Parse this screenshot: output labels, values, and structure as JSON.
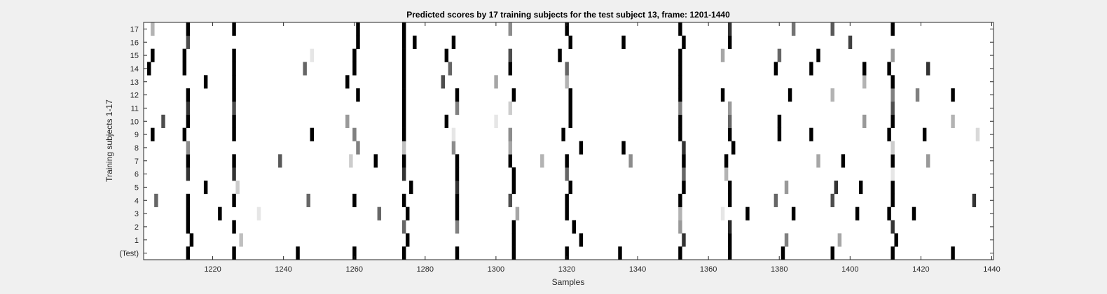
{
  "chart_data": {
    "type": "heatmap",
    "title": "Predicted scores by 17 training subjects for the test subject 13, frame: 1201-1440",
    "xlabel": "Samples",
    "ylabel": "Training subjects 1-17",
    "xlim": [
      1201,
      1440
    ],
    "x_ticks": [
      "1220",
      "1240",
      "1260",
      "1280",
      "1300",
      "1320",
      "1340",
      "1360",
      "1380",
      "1400",
      "1420",
      "1440"
    ],
    "y_tick_labels": [
      "(Test)",
      "1",
      "2",
      "3",
      "4",
      "5",
      "6",
      "7",
      "8",
      "9",
      "10",
      "11",
      "12",
      "13",
      "14",
      "15",
      "16",
      "17"
    ],
    "value_scale": "0 = white (no score), 1 = black (strong score)",
    "rows": [
      {
        "label": "(Test)",
        "marks": [
          [
            1213,
            1
          ],
          [
            1226,
            1
          ],
          [
            1244,
            1
          ],
          [
            1260,
            1
          ],
          [
            1274,
            1
          ],
          [
            1289,
            1
          ],
          [
            1305,
            1
          ],
          [
            1320,
            1
          ],
          [
            1335,
            1
          ],
          [
            1352,
            1
          ],
          [
            1366,
            1
          ],
          [
            1381,
            1
          ],
          [
            1395,
            1
          ],
          [
            1412,
            1
          ],
          [
            1429,
            1
          ]
        ]
      },
      {
        "label": "1",
        "marks": [
          [
            1214,
            1
          ],
          [
            1228,
            0.25
          ],
          [
            1275,
            1
          ],
          [
            1305,
            1
          ],
          [
            1324,
            1
          ],
          [
            1353,
            0.8
          ],
          [
            1366,
            1
          ],
          [
            1382,
            0.5
          ],
          [
            1397,
            0.35
          ],
          [
            1413,
            1
          ]
        ]
      },
      {
        "label": "2",
        "marks": [
          [
            1213,
            1
          ],
          [
            1226,
            1
          ],
          [
            1274,
            0.6
          ],
          [
            1289,
            0.5
          ],
          [
            1305,
            1
          ],
          [
            1322,
            1
          ],
          [
            1352,
            0.4
          ],
          [
            1366,
            0.85
          ],
          [
            1412,
            0.8
          ]
        ]
      },
      {
        "label": "3",
        "marks": [
          [
            1213,
            1
          ],
          [
            1222,
            1
          ],
          [
            1233,
            0.1
          ],
          [
            1267,
            0.6
          ],
          [
            1275,
            1
          ],
          [
            1289,
            1
          ],
          [
            1306,
            0.35
          ],
          [
            1320,
            1
          ],
          [
            1352,
            0.3
          ],
          [
            1364,
            0.1
          ],
          [
            1371,
            1
          ],
          [
            1384,
            1
          ],
          [
            1402,
            1
          ],
          [
            1411,
            1
          ],
          [
            1418,
            1
          ]
        ]
      },
      {
        "label": "4",
        "marks": [
          [
            1204,
            0.6
          ],
          [
            1213,
            1
          ],
          [
            1226,
            1
          ],
          [
            1247,
            0.6
          ],
          [
            1260,
            1
          ],
          [
            1274,
            1
          ],
          [
            1289,
            1
          ],
          [
            1304,
            0.7
          ],
          [
            1320,
            1
          ],
          [
            1352,
            1
          ],
          [
            1366,
            1
          ],
          [
            1379,
            0.6
          ],
          [
            1395,
            0.7
          ],
          [
            1412,
            1
          ],
          [
            1435,
            0.8
          ]
        ]
      },
      {
        "label": "5",
        "marks": [
          [
            1218,
            1
          ],
          [
            1227,
            0.2
          ],
          [
            1276,
            1
          ],
          [
            1289,
            0.8
          ],
          [
            1305,
            1
          ],
          [
            1321,
            1
          ],
          [
            1353,
            1
          ],
          [
            1366,
            1
          ],
          [
            1382,
            0.4
          ],
          [
            1396,
            0.8
          ],
          [
            1403,
            1
          ],
          [
            1412,
            1
          ]
        ]
      },
      {
        "label": "6",
        "marks": [
          [
            1213,
            0.8
          ],
          [
            1226,
            0.8
          ],
          [
            1274,
            0.8
          ],
          [
            1289,
            1
          ],
          [
            1305,
            1
          ],
          [
            1320,
            0.6
          ],
          [
            1353,
            0.6
          ],
          [
            1365,
            0.3
          ],
          [
            1412,
            0.1
          ]
        ]
      },
      {
        "label": "7",
        "marks": [
          [
            1213,
            1
          ],
          [
            1226,
            1
          ],
          [
            1239,
            0.65
          ],
          [
            1259,
            0.2
          ],
          [
            1266,
            1
          ],
          [
            1274,
            1
          ],
          [
            1289,
            1
          ],
          [
            1304,
            1
          ],
          [
            1313,
            0.3
          ],
          [
            1320,
            1
          ],
          [
            1338,
            0.45
          ],
          [
            1353,
            1
          ],
          [
            1365,
            1
          ],
          [
            1391,
            0.35
          ],
          [
            1398,
            1
          ],
          [
            1412,
            1
          ],
          [
            1422,
            0.4
          ]
        ]
      },
      {
        "label": "8",
        "marks": [
          [
            1213,
            0.45
          ],
          [
            1261,
            0.5
          ],
          [
            1274,
            0.25
          ],
          [
            1288,
            0.45
          ],
          [
            1304,
            0.35
          ],
          [
            1324,
            1
          ],
          [
            1336,
            1
          ],
          [
            1353,
            0.8
          ],
          [
            1367,
            1
          ],
          [
            1412,
            0.2
          ]
        ]
      },
      {
        "label": "9",
        "marks": [
          [
            1203,
            1
          ],
          [
            1212,
            1
          ],
          [
            1226,
            1
          ],
          [
            1248,
            1
          ],
          [
            1260,
            0.5
          ],
          [
            1274,
            1
          ],
          [
            1288,
            0.1
          ],
          [
            1304,
            0.45
          ],
          [
            1319,
            1
          ],
          [
            1352,
            1
          ],
          [
            1366,
            1
          ],
          [
            1380,
            1
          ],
          [
            1389,
            1
          ],
          [
            1411,
            1
          ],
          [
            1421,
            1
          ],
          [
            1436,
            0.15
          ]
        ]
      },
      {
        "label": "10",
        "marks": [
          [
            1206,
            0.7
          ],
          [
            1213,
            1
          ],
          [
            1226,
            1
          ],
          [
            1258,
            0.4
          ],
          [
            1274,
            1
          ],
          [
            1286,
            1
          ],
          [
            1300,
            0.1
          ],
          [
            1321,
            1
          ],
          [
            1352,
            1
          ],
          [
            1366,
            0.6
          ],
          [
            1380,
            1
          ],
          [
            1404,
            0.4
          ],
          [
            1412,
            1
          ],
          [
            1429,
            0.3
          ]
        ]
      },
      {
        "label": "11",
        "marks": [
          [
            1213,
            0.8
          ],
          [
            1226,
            0.7
          ],
          [
            1274,
            1
          ],
          [
            1289,
            0.5
          ],
          [
            1304,
            0.2
          ],
          [
            1321,
            1
          ],
          [
            1352,
            0.5
          ],
          [
            1366,
            0.4
          ],
          [
            1412,
            0.7
          ]
        ]
      },
      {
        "label": "12",
        "marks": [
          [
            1213,
            1
          ],
          [
            1226,
            1
          ],
          [
            1261,
            1
          ],
          [
            1274,
            1
          ],
          [
            1289,
            1
          ],
          [
            1305,
            1
          ],
          [
            1321,
            1
          ],
          [
            1352,
            1
          ],
          [
            1364,
            1
          ],
          [
            1383,
            1
          ],
          [
            1395,
            0.3
          ],
          [
            1412,
            0.5
          ],
          [
            1419,
            0.5
          ],
          [
            1429,
            1
          ]
        ]
      },
      {
        "label": "13",
        "marks": [
          [
            1218,
            1
          ],
          [
            1226,
            1
          ],
          [
            1258,
            1
          ],
          [
            1274,
            1
          ],
          [
            1285,
            0.7
          ],
          [
            1300,
            0.35
          ],
          [
            1320,
            0.3
          ],
          [
            1352,
            1
          ],
          [
            1404,
            0.3
          ],
          [
            1412,
            1
          ]
        ]
      },
      {
        "label": "14",
        "marks": [
          [
            1202,
            1
          ],
          [
            1212,
            1
          ],
          [
            1226,
            1
          ],
          [
            1246,
            0.6
          ],
          [
            1260,
            1
          ],
          [
            1274,
            1
          ],
          [
            1287,
            0.6
          ],
          [
            1304,
            1
          ],
          [
            1320,
            0.6
          ],
          [
            1352,
            1
          ],
          [
            1379,
            1
          ],
          [
            1389,
            1
          ],
          [
            1404,
            1
          ],
          [
            1411,
            1
          ],
          [
            1422,
            0.8
          ]
        ]
      },
      {
        "label": "15",
        "marks": [
          [
            1203,
            1
          ],
          [
            1212,
            1
          ],
          [
            1226,
            1
          ],
          [
            1248,
            0.1
          ],
          [
            1260,
            1
          ],
          [
            1274,
            1
          ],
          [
            1286,
            1
          ],
          [
            1304,
            0.7
          ],
          [
            1318,
            1
          ],
          [
            1352,
            1
          ],
          [
            1364,
            0.35
          ],
          [
            1380,
            0.6
          ],
          [
            1391,
            1
          ],
          [
            1412,
            0.4
          ]
        ]
      },
      {
        "label": "16",
        "marks": [
          [
            1213,
            0.7
          ],
          [
            1261,
            1
          ],
          [
            1274,
            1
          ],
          [
            1277,
            1
          ],
          [
            1288,
            1
          ],
          [
            1321,
            1
          ],
          [
            1336,
            1
          ],
          [
            1353,
            1
          ],
          [
            1366,
            1
          ],
          [
            1400,
            0.75
          ]
        ]
      },
      {
        "label": "17",
        "marks": [
          [
            1203,
            0.3
          ],
          [
            1213,
            1
          ],
          [
            1226,
            1
          ],
          [
            1261,
            1
          ],
          [
            1274,
            1
          ],
          [
            1304,
            0.45
          ],
          [
            1320,
            1
          ],
          [
            1352,
            1
          ],
          [
            1366,
            0.8
          ],
          [
            1384,
            0.55
          ],
          [
            1395,
            0.65
          ],
          [
            1412,
            1
          ]
        ]
      }
    ]
  }
}
